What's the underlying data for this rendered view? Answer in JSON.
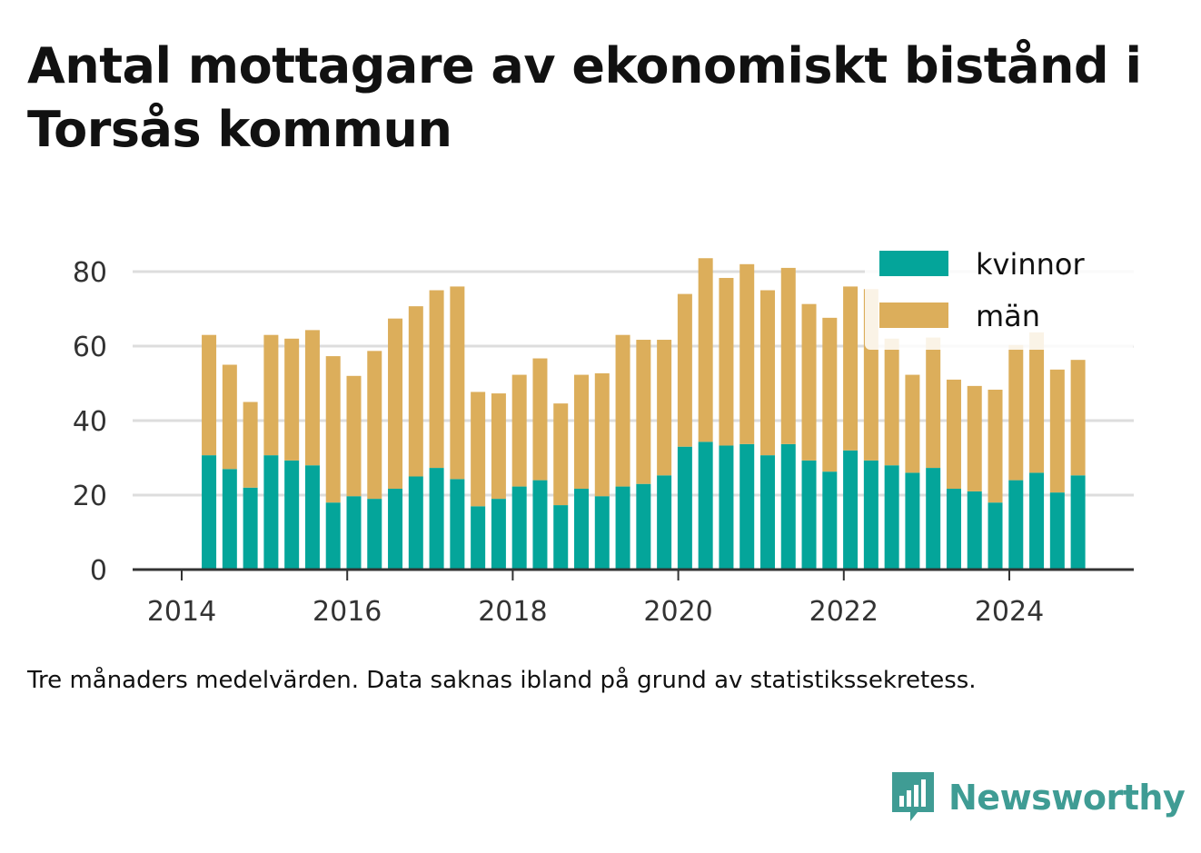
{
  "header": {
    "title": "Antal mottagare av ekonomiskt bistånd i Torsås kommun"
  },
  "caption": "Tre månaders medelvärden. Data saknas ibland på grund av statistikssekretess.",
  "brand": {
    "name": "Newsworthy",
    "icon": "bar-chart-speech-bubble-icon"
  },
  "colors": {
    "kvinnor": "#04a59a",
    "man": "#dcae5b",
    "grid": "#dddddd",
    "axis": "#333333",
    "brand": "#3f9c94"
  },
  "chart_data": {
    "type": "bar",
    "stacked": true,
    "x_ticks": [
      "2014",
      "2016",
      "2018",
      "2020",
      "2022",
      "2024"
    ],
    "y_ticks": [
      0,
      20,
      40,
      60,
      80
    ],
    "ylim": [
      0,
      88
    ],
    "xlim": [
      2013.7,
      2025.5
    ],
    "grid": true,
    "legend_position": "top-right",
    "x": [
      2014.33,
      2014.58,
      2014.83,
      2015.08,
      2015.33,
      2015.58,
      2015.83,
      2016.08,
      2016.33,
      2016.58,
      2016.83,
      2017.08,
      2017.33,
      2017.58,
      2017.83,
      2018.08,
      2018.33,
      2018.58,
      2018.83,
      2019.08,
      2019.33,
      2019.58,
      2019.83,
      2020.08,
      2020.33,
      2020.58,
      2020.83,
      2021.08,
      2021.33,
      2021.58,
      2021.83,
      2022.08,
      2022.33,
      2022.58,
      2022.83,
      2023.08,
      2023.33,
      2023.58,
      2023.83,
      2024.08,
      2024.33,
      2024.58,
      2024.83
    ],
    "series": [
      {
        "name": "kvinnor",
        "values": [
          30.7,
          27.0,
          22.0,
          30.7,
          29.3,
          28.0,
          18.0,
          19.7,
          19.0,
          21.7,
          25.0,
          27.3,
          24.3,
          17.0,
          19.0,
          22.3,
          24.0,
          17.3,
          21.7,
          19.7,
          22.3,
          23.0,
          25.3,
          33.0,
          34.3,
          33.3,
          33.7,
          30.7,
          33.7,
          29.3,
          26.3,
          32.0,
          29.3,
          28.0,
          26.0,
          27.3,
          21.7,
          21.0,
          18.0,
          24.0,
          26.0,
          20.7,
          25.3
        ]
      },
      {
        "name": "män",
        "values": [
          32.3,
          28.0,
          23.0,
          32.3,
          32.7,
          36.3,
          39.3,
          32.3,
          39.7,
          45.7,
          45.7,
          47.7,
          51.7,
          30.7,
          28.3,
          30.0,
          32.7,
          27.3,
          30.6,
          33.0,
          40.7,
          38.7,
          36.4,
          41.0,
          49.3,
          45.0,
          48.3,
          44.3,
          47.3,
          42.0,
          41.3,
          44.0,
          46.0,
          34.0,
          26.3,
          35.0,
          29.3,
          28.3,
          30.3,
          36.3,
          37.7,
          33.0,
          31.0
        ]
      }
    ]
  }
}
